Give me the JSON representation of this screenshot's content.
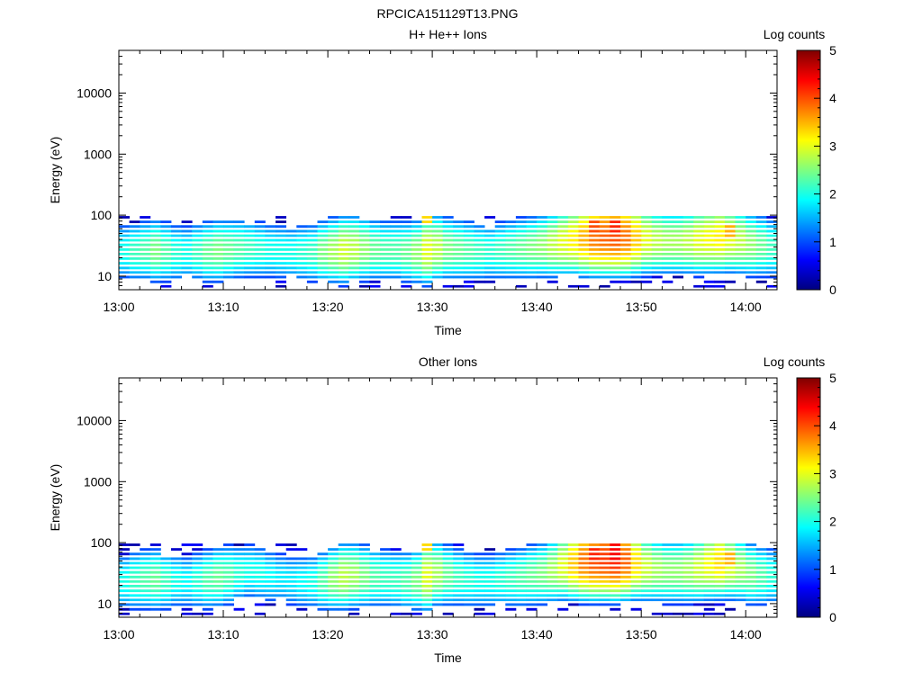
{
  "figure_title": "RPCICA151129T13.PNG",
  "colorbar_values": [
    0,
    1,
    2,
    3,
    4,
    5
  ],
  "colormap": [
    "#00007f",
    "#0000ff",
    "#007fff",
    "#00ffff",
    "#7fff7f",
    "#ffff00",
    "#ff7f00",
    "#ff0000",
    "#7f0000"
  ],
  "chart_data": [
    {
      "type": "heatmap",
      "title": "H+ He++ Ions",
      "xlabel": "Time",
      "ylabel": "Energy (eV)",
      "colorbar_label": "Log counts",
      "y_scale": "log",
      "ylim": [
        6,
        50000
      ],
      "xlim": [
        "13:00",
        "14:03"
      ],
      "clim": [
        0,
        5
      ],
      "x_ticks": [
        "13:00",
        "13:10",
        "13:20",
        "13:30",
        "13:40",
        "13:50",
        "14:00"
      ],
      "y_ticks": [
        "10",
        "100",
        "1000",
        "10000"
      ],
      "grid": false,
      "spectrogram": {
        "time_start": "13:00",
        "time_step_min": 1,
        "n_times": 63,
        "energy_bins_eV": [
          6.5,
          7.7,
          9.2,
          11,
          13,
          15.5,
          18.5,
          22,
          26,
          31,
          37,
          44,
          52,
          62,
          74,
          88
        ],
        "band": {
          "peak_energy_eV": [
            24,
            24,
            25,
            25,
            24,
            23,
            23,
            24,
            24,
            25,
            26,
            27,
            27,
            26,
            25,
            24,
            23,
            23,
            23,
            24,
            25,
            26,
            27,
            27,
            26,
            25,
            25,
            24,
            24,
            26,
            28,
            27,
            26,
            25,
            24,
            24,
            25,
            26,
            27,
            28,
            30,
            32,
            35,
            38,
            40,
            42,
            43,
            44,
            42,
            40,
            38,
            36,
            35,
            35,
            36,
            38,
            40,
            42,
            40,
            36,
            32,
            30,
            28
          ],
          "peak_log_counts": [
            2.0,
            2.2,
            2.3,
            2.5,
            2.3,
            2.1,
            2.0,
            2.2,
            2.4,
            2.5,
            2.4,
            2.3,
            2.2,
            2.1,
            2.0,
            2.0,
            2.0,
            2.1,
            2.2,
            2.5,
            2.7,
            2.9,
            2.8,
            2.6,
            2.4,
            2.3,
            2.3,
            2.4,
            2.6,
            3.0,
            2.8,
            2.5,
            2.4,
            2.3,
            2.2,
            2.1,
            2.2,
            2.3,
            2.4,
            2.5,
            2.6,
            2.8,
            3.0,
            3.2,
            3.5,
            3.8,
            3.9,
            4.0,
            3.8,
            3.4,
            3.0,
            2.8,
            2.7,
            2.7,
            2.8,
            3.0,
            3.1,
            3.2,
            3.0,
            2.8,
            2.6,
            2.4,
            2.2
          ]
        },
        "hot_spots": [
          {
            "time": "13:29",
            "energy_eV": [
              74,
              88
            ],
            "log_counts": 3.3
          },
          {
            "time": "13:45",
            "energy_eV": [
              52,
              74
            ],
            "log_counts": 4.0
          },
          {
            "time": "13:47",
            "energy_eV": [
              52,
              74
            ],
            "log_counts": 4.2
          },
          {
            "time": "13:58",
            "energy_eV": [
              44,
              62
            ],
            "log_counts": 3.5
          }
        ]
      }
    },
    {
      "type": "heatmap",
      "title": "Other Ions",
      "xlabel": "Time",
      "ylabel": "Energy (eV)",
      "colorbar_label": "Log counts",
      "y_scale": "log",
      "ylim": [
        6,
        50000
      ],
      "xlim": [
        "13:00",
        "14:03"
      ],
      "clim": [
        0,
        5
      ],
      "x_ticks": [
        "13:00",
        "13:10",
        "13:20",
        "13:30",
        "13:40",
        "13:50",
        "14:00"
      ],
      "y_ticks": [
        "10",
        "100",
        "1000",
        "10000"
      ],
      "grid": false,
      "spectrogram": {
        "time_start": "13:00",
        "time_step_min": 1,
        "n_times": 63,
        "energy_bins_eV": [
          6.5,
          7.7,
          9.2,
          11,
          13,
          15.5,
          18.5,
          22,
          26,
          31,
          37,
          44,
          52,
          62,
          74,
          88
        ],
        "band": {
          "peak_energy_eV": [
            22,
            23,
            24,
            24,
            23,
            23,
            22,
            23,
            24,
            26,
            28,
            30,
            32,
            30,
            27,
            25,
            23,
            22,
            22,
            23,
            25,
            27,
            28,
            27,
            26,
            25,
            24,
            23,
            24,
            27,
            30,
            28,
            26,
            24,
            23,
            23,
            24,
            25,
            26,
            28,
            30,
            34,
            40,
            44,
            48,
            50,
            52,
            52,
            50,
            44,
            38,
            35,
            33,
            33,
            34,
            37,
            42,
            46,
            42,
            36,
            30,
            28,
            27
          ],
          "peak_log_counts": [
            2.0,
            2.2,
            2.3,
            2.4,
            2.2,
            2.0,
            1.9,
            2.1,
            2.3,
            2.4,
            2.3,
            2.1,
            2.0,
            2.0,
            1.9,
            1.8,
            1.8,
            1.9,
            2.0,
            2.3,
            2.6,
            2.8,
            2.7,
            2.5,
            2.3,
            2.2,
            2.2,
            2.3,
            2.5,
            3.0,
            2.7,
            2.4,
            2.2,
            2.1,
            2.0,
            2.0,
            2.1,
            2.2,
            2.3,
            2.4,
            2.5,
            2.7,
            3.0,
            3.4,
            3.8,
            4.0,
            4.1,
            4.2,
            3.9,
            3.3,
            2.9,
            2.7,
            2.6,
            2.6,
            2.7,
            2.9,
            3.1,
            3.3,
            3.0,
            2.7,
            2.5,
            2.3,
            2.1
          ]
        },
        "hot_spots": [
          {
            "time": "13:29",
            "energy_eV": [
              74,
              88
            ],
            "log_counts": 3.3
          },
          {
            "time": "13:45",
            "energy_eV": [
              52,
              74
            ],
            "log_counts": 4.2
          },
          {
            "time": "13:47",
            "energy_eV": [
              52,
              88
            ],
            "log_counts": 4.4
          },
          {
            "time": "13:58",
            "energy_eV": [
              44,
              62
            ],
            "log_counts": 3.5
          }
        ]
      }
    }
  ]
}
